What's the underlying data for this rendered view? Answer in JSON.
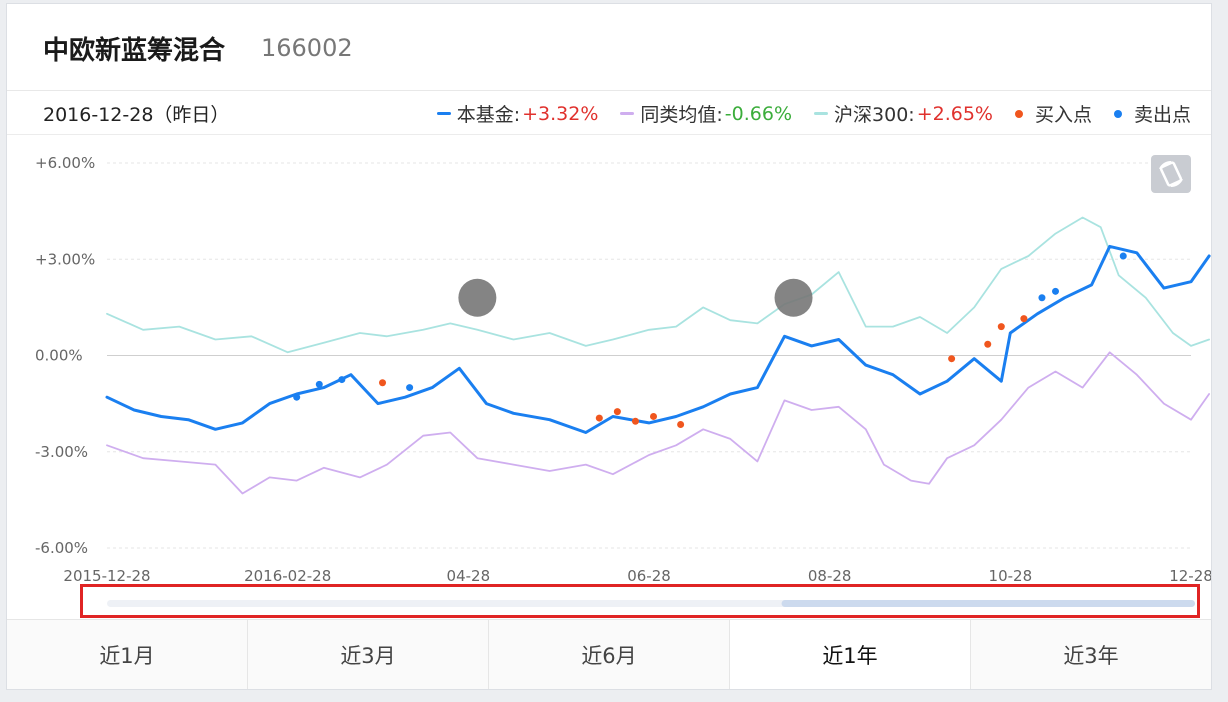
{
  "fund": {
    "name": "中欧新蓝筹混合",
    "code": "166002"
  },
  "date_label": "2016-12-28（昨日）",
  "legend": {
    "fund": {
      "name": "本基金:",
      "value": "+3.32%"
    },
    "peer": {
      "name": "同类均值:",
      "value": "-0.66%"
    },
    "index": {
      "name": "沪深300:",
      "value": "+2.65%"
    },
    "buy": {
      "name": "买入点"
    },
    "sell": {
      "name": "卖出点"
    }
  },
  "colors": {
    "fund": "#1a7ff0",
    "peer": "#cfaeef",
    "index": "#a9e3e0",
    "buy": "#f0561e",
    "sell": "#1a7ff0",
    "positive": "#e0312d",
    "negative": "#3bad3b"
  },
  "tabs": [
    {
      "label": "近1月",
      "active": false
    },
    {
      "label": "近3月",
      "active": false
    },
    {
      "label": "近6月",
      "active": false
    },
    {
      "label": "近1年",
      "active": true
    },
    {
      "label": "近3年",
      "active": false
    }
  ],
  "rotate_icon": "rotate-phone-icon",
  "chart_data": {
    "type": "line",
    "y_tick_labels": [
      "+6.00%",
      "+3.00%",
      "0.00%",
      "-3.00%",
      "-6.00%"
    ],
    "ylim": [
      -6,
      6
    ],
    "x_tick_labels": [
      "2015-12-28",
      "2016-02-28",
      "04-28",
      "06-28",
      "08-28",
      "10-28",
      "12-28"
    ],
    "x_tick_positions": [
      0,
      2,
      4,
      6,
      8,
      10,
      12
    ],
    "xlim": [
      0,
      12
    ],
    "grid": "horizontal-dashed",
    "series": [
      {
        "key": "index",
        "name": "沪深300:",
        "points": [
          [
            0,
            1.3
          ],
          [
            0.4,
            0.8
          ],
          [
            0.8,
            0.9
          ],
          [
            1.2,
            0.5
          ],
          [
            1.6,
            0.6
          ],
          [
            2.0,
            0.1
          ],
          [
            2.4,
            0.4
          ],
          [
            2.8,
            0.7
          ],
          [
            3.1,
            0.6
          ],
          [
            3.5,
            0.8
          ],
          [
            3.8,
            1.0
          ],
          [
            4.1,
            0.8
          ],
          [
            4.5,
            0.5
          ],
          [
            4.9,
            0.7
          ],
          [
            5.3,
            0.3
          ],
          [
            5.6,
            0.5
          ],
          [
            6.0,
            0.8
          ],
          [
            6.3,
            0.9
          ],
          [
            6.6,
            1.5
          ],
          [
            6.9,
            1.1
          ],
          [
            7.2,
            1.0
          ],
          [
            7.5,
            1.6
          ],
          [
            7.8,
            1.9
          ],
          [
            8.1,
            2.6
          ],
          [
            8.4,
            0.9
          ],
          [
            8.7,
            0.9
          ],
          [
            9.0,
            1.2
          ],
          [
            9.3,
            0.7
          ],
          [
            9.6,
            1.5
          ],
          [
            9.9,
            2.7
          ],
          [
            10.2,
            3.1
          ],
          [
            10.5,
            3.8
          ],
          [
            10.8,
            4.3
          ],
          [
            11.0,
            4.0
          ],
          [
            11.2,
            2.5
          ],
          [
            11.5,
            1.8
          ],
          [
            11.8,
            0.7
          ],
          [
            12.0,
            0.3
          ],
          [
            12.2,
            0.5
          ]
        ]
      },
      {
        "key": "peer",
        "name": "同类均值:",
        "points": [
          [
            0,
            -2.8
          ],
          [
            0.4,
            -3.2
          ],
          [
            0.8,
            -3.3
          ],
          [
            1.2,
            -3.4
          ],
          [
            1.5,
            -4.3
          ],
          [
            1.8,
            -3.8
          ],
          [
            2.1,
            -3.9
          ],
          [
            2.4,
            -3.5
          ],
          [
            2.8,
            -3.8
          ],
          [
            3.1,
            -3.4
          ],
          [
            3.5,
            -2.5
          ],
          [
            3.8,
            -2.4
          ],
          [
            4.1,
            -3.2
          ],
          [
            4.5,
            -3.4
          ],
          [
            4.9,
            -3.6
          ],
          [
            5.3,
            -3.4
          ],
          [
            5.6,
            -3.7
          ],
          [
            6.0,
            -3.1
          ],
          [
            6.3,
            -2.8
          ],
          [
            6.6,
            -2.3
          ],
          [
            6.9,
            -2.6
          ],
          [
            7.2,
            -3.3
          ],
          [
            7.5,
            -1.4
          ],
          [
            7.8,
            -1.7
          ],
          [
            8.1,
            -1.6
          ],
          [
            8.4,
            -2.3
          ],
          [
            8.6,
            -3.4
          ],
          [
            8.9,
            -3.9
          ],
          [
            9.1,
            -4.0
          ],
          [
            9.3,
            -3.2
          ],
          [
            9.6,
            -2.8
          ],
          [
            9.9,
            -2.0
          ],
          [
            10.2,
            -1.0
          ],
          [
            10.5,
            -0.5
          ],
          [
            10.8,
            -1.0
          ],
          [
            11.1,
            0.1
          ],
          [
            11.4,
            -0.6
          ],
          [
            11.7,
            -1.5
          ],
          [
            12.0,
            -2.0
          ],
          [
            12.2,
            -1.2
          ]
        ]
      },
      {
        "key": "fund",
        "name": "本基金:",
        "points": [
          [
            0,
            -1.3
          ],
          [
            0.3,
            -1.7
          ],
          [
            0.6,
            -1.9
          ],
          [
            0.9,
            -2.0
          ],
          [
            1.2,
            -2.3
          ],
          [
            1.5,
            -2.1
          ],
          [
            1.8,
            -1.5
          ],
          [
            2.1,
            -1.2
          ],
          [
            2.4,
            -1.0
          ],
          [
            2.7,
            -0.6
          ],
          [
            3.0,
            -1.5
          ],
          [
            3.3,
            -1.3
          ],
          [
            3.6,
            -1.0
          ],
          [
            3.9,
            -0.4
          ],
          [
            4.2,
            -1.5
          ],
          [
            4.5,
            -1.8
          ],
          [
            4.9,
            -2.0
          ],
          [
            5.3,
            -2.4
          ],
          [
            5.6,
            -1.9
          ],
          [
            6.0,
            -2.1
          ],
          [
            6.3,
            -1.9
          ],
          [
            6.6,
            -1.6
          ],
          [
            6.9,
            -1.2
          ],
          [
            7.2,
            -1.0
          ],
          [
            7.5,
            0.6
          ],
          [
            7.8,
            0.3
          ],
          [
            8.1,
            0.5
          ],
          [
            8.4,
            -0.3
          ],
          [
            8.7,
            -0.6
          ],
          [
            9.0,
            -1.2
          ],
          [
            9.3,
            -0.8
          ],
          [
            9.6,
            -0.1
          ],
          [
            9.9,
            -0.8
          ],
          [
            10.0,
            0.7
          ],
          [
            10.3,
            1.3
          ],
          [
            10.6,
            1.8
          ],
          [
            10.9,
            2.2
          ],
          [
            11.1,
            3.4
          ],
          [
            11.4,
            3.2
          ],
          [
            11.7,
            2.1
          ],
          [
            12.0,
            2.3
          ],
          [
            12.2,
            3.1
          ]
        ]
      }
    ],
    "buy_points": [
      [
        3.05,
        -0.85
      ],
      [
        5.45,
        -1.95
      ],
      [
        5.65,
        -1.75
      ],
      [
        5.85,
        -2.05
      ],
      [
        6.05,
        -1.9
      ],
      [
        6.35,
        -2.15
      ],
      [
        9.35,
        -0.1
      ],
      [
        9.75,
        0.35
      ],
      [
        9.9,
        0.9
      ],
      [
        10.15,
        1.15
      ]
    ],
    "sell_points": [
      [
        2.1,
        -1.3
      ],
      [
        2.35,
        -0.9
      ],
      [
        2.6,
        -0.75
      ],
      [
        3.35,
        -1.0
      ],
      [
        10.35,
        1.8
      ],
      [
        10.5,
        2.0
      ],
      [
        11.25,
        3.1
      ]
    ],
    "annotation_markers": [
      [
        4.1,
        1.8
      ],
      [
        7.6,
        1.8
      ]
    ],
    "range_selector": {
      "start": 0.62,
      "end": 1.0
    }
  }
}
